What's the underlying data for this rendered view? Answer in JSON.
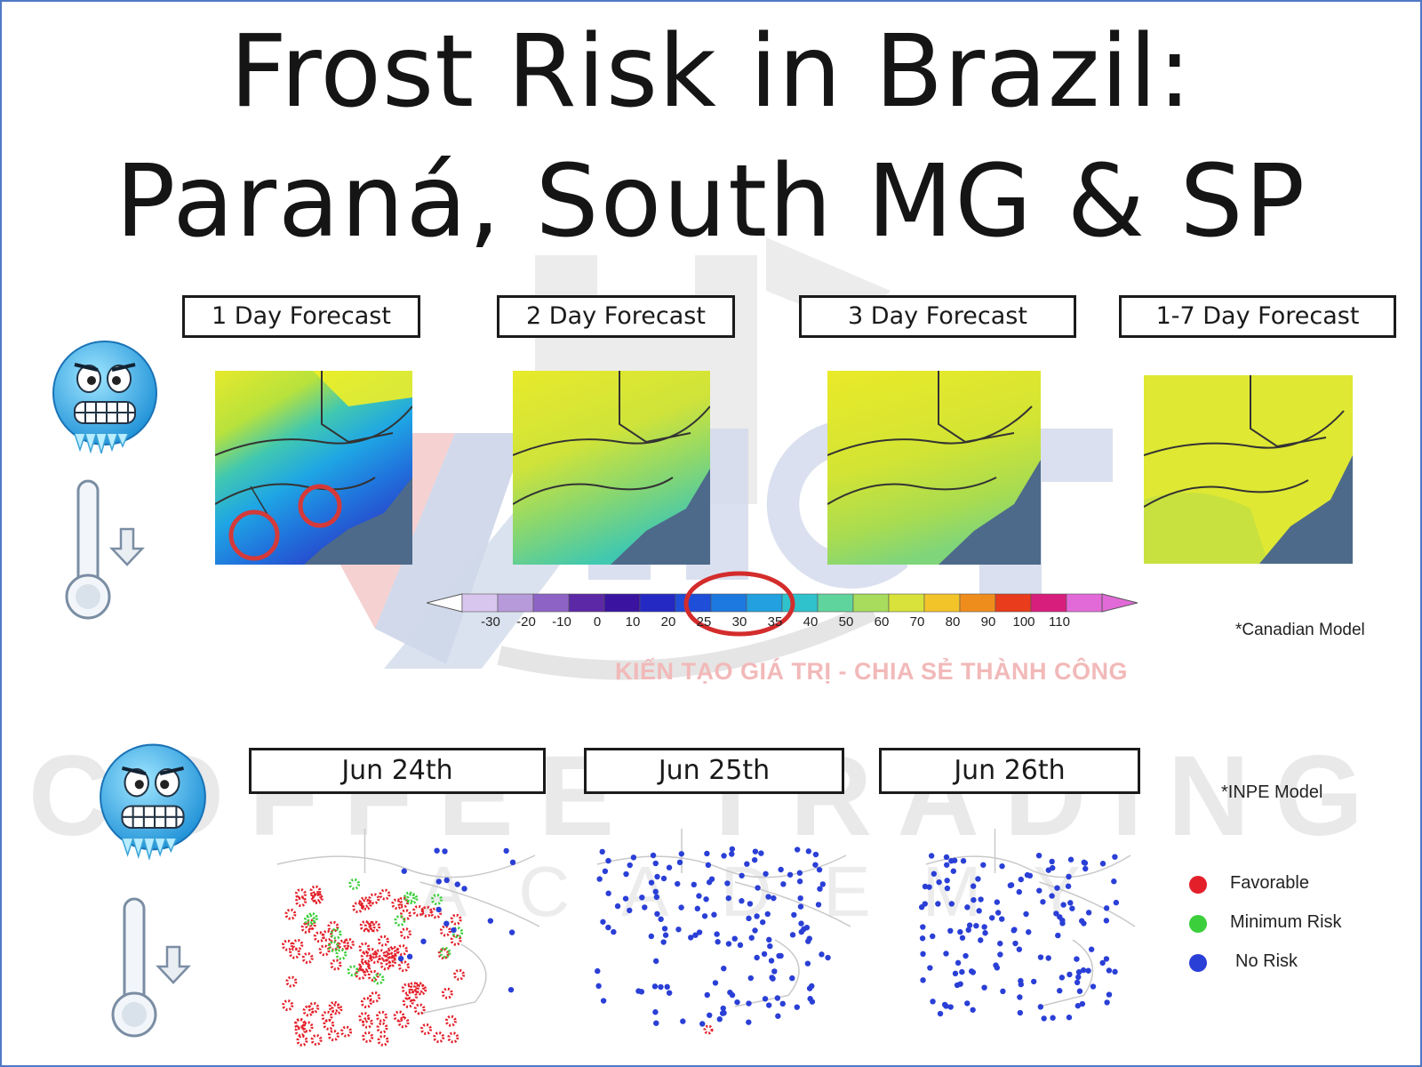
{
  "title": {
    "line1": "Frost Risk in Brazil:",
    "line2": "Paraná, South MG & SP"
  },
  "canadian_section": {
    "panels": [
      {
        "label": "1 Day Forecast"
      },
      {
        "label": "2 Day Forecast"
      },
      {
        "label": "3 Day Forecast"
      },
      {
        "label": "1-7 Day Forecast"
      }
    ],
    "note": "*Canadian Model",
    "colorbar": {
      "ticks": [
        "-30",
        "-20",
        "-10",
        "0",
        "10",
        "20",
        "25",
        "30",
        "35",
        "40",
        "50",
        "60",
        "70",
        "80",
        "90",
        "100",
        "110"
      ],
      "colors": [
        "#d9c6ee",
        "#b79ad9",
        "#8d64c5",
        "#5c28a6",
        "#3a14a0",
        "#2529c4",
        "#1f4ed8",
        "#1d78e0",
        "#23a0df",
        "#2fc2cc",
        "#5fd49c",
        "#a7dc5c",
        "#d8e23a",
        "#f2c42a",
        "#ef8d1c",
        "#e83c1c",
        "#d81e7c",
        "#e26ad8"
      ],
      "highlight_range": [
        25,
        35
      ]
    }
  },
  "inpe_section": {
    "panels": [
      {
        "label": "Jun 24th"
      },
      {
        "label": "Jun 25th"
      },
      {
        "label": "Jun 26th"
      }
    ],
    "note": "*INPE Model",
    "legend": [
      {
        "label": "Favorable",
        "color": "#e3202a"
      },
      {
        "label": "Minimum Risk",
        "color": "#3ccf3c"
      },
      {
        "label": "No Risk",
        "color": "#2a3fd6"
      }
    ]
  },
  "watermark": {
    "tagline": "KIẾN TẠO GIÁ TRỊ - CHIA SẺ THÀNH CÔNG",
    "brand": "COFFEE TRADING",
    "sub": "ACADEMY",
    "logo": "HCT"
  },
  "icons": [
    "frozen-face-icon",
    "thermometer-down-icon"
  ]
}
